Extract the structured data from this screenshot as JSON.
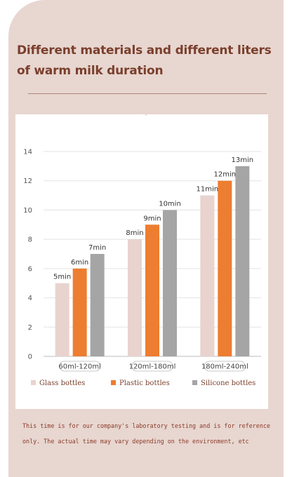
{
  "title_lines": [
    "Different materials and different liters",
    "of warm milk duration"
  ],
  "note_lines": [
    "This time is for our company's laboratory testing and is for reference",
    "only. The actual time may vary depending on the environment, etc"
  ],
  "chart_data": {
    "type": "bar",
    "categories": [
      "60ml-120ml",
      "120ml-180ml",
      "180ml-240ml"
    ],
    "series": [
      {
        "name": "Glass bottles",
        "values": [
          5,
          8,
          11
        ],
        "labels": [
          "5min",
          "8min",
          "11min"
        ],
        "color": "#e8d3ce"
      },
      {
        "name": "Plastic bottles",
        "values": [
          6,
          9,
          12
        ],
        "labels": [
          "6min",
          "9min",
          "12min"
        ],
        "color": "#ed7d31"
      },
      {
        "name": "Silicone bottles",
        "values": [
          7,
          10,
          13
        ],
        "labels": [
          "7min",
          "10min",
          "13min"
        ],
        "color": "#a5a5a5"
      }
    ],
    "ylim": [
      0,
      14
    ],
    "yticks": [
      0,
      2,
      4,
      6,
      8,
      10,
      12,
      14
    ],
    "grid": true,
    "legend_position": "bottom"
  }
}
